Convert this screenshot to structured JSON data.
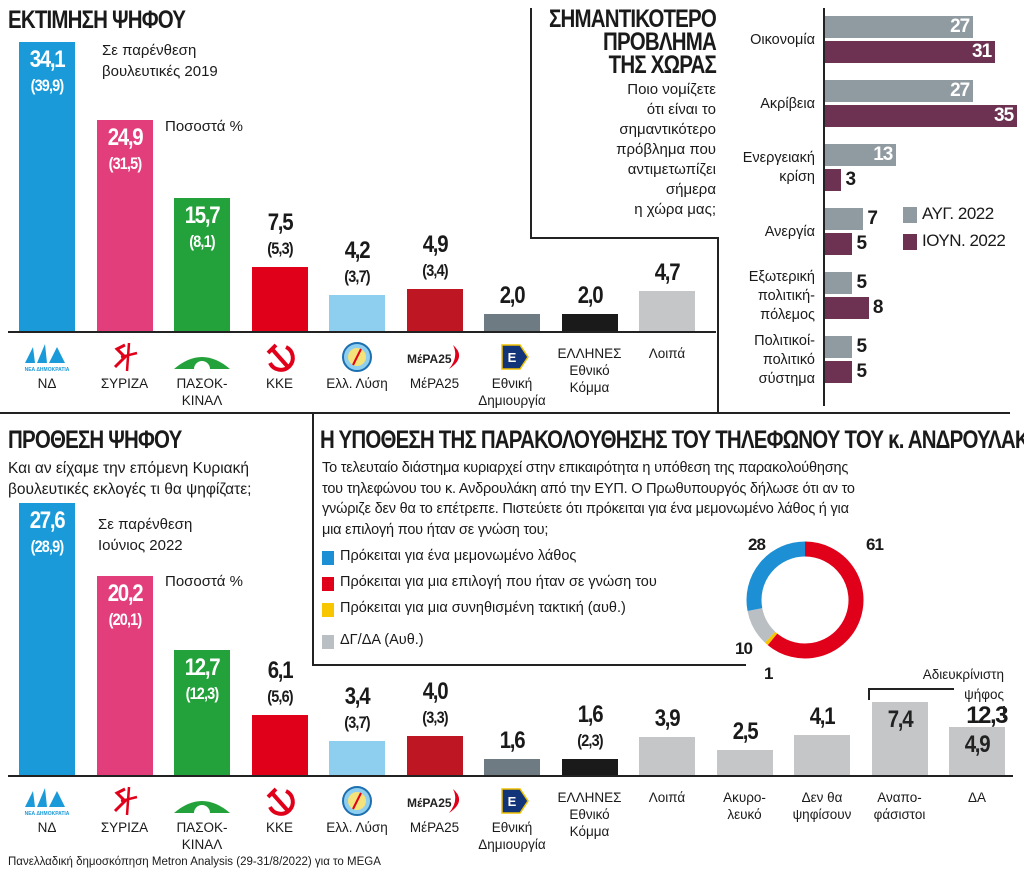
{
  "colors": {
    "nd": "#1a9ad9",
    "syriza": "#e23e7b",
    "pasok": "#23a13a",
    "kke": "#e1001a",
    "ellisi": "#8ecff0",
    "mera25": "#be1622",
    "ethniki": "#6f7b82",
    "ellines": "#1a1a1a",
    "other": "#c4c6c8",
    "aug": "#8f9aa1",
    "jun": "#6d3152",
    "donut_blue": "#1d8fd5",
    "donut_red": "#e1001a",
    "donut_yellow": "#f7c600",
    "donut_gray": "#b9bfc3"
  },
  "chart_data": [
    {
      "type": "bar",
      "title": "ΕΚΤΙΜΗΣΗ ΨΗΦΟΥ",
      "note": "Σε παρένθεση\nβουλευτικές 2019",
      "unit_note": "Ποσοστά %",
      "categories": [
        "ΝΔ",
        "ΣΥΡΙΖΑ",
        "ΠΑΣΟΚ-\nΚΙΝΑΛ",
        "ΚΚΕ",
        "Ελλ. Λύση",
        "ΜέΡΑ25",
        "Εθνική\nΔημιουργία",
        "ΕΛΛΗΝΕΣ\nΕθνικό\nΚόμμα",
        "Λοιπά"
      ],
      "logos": [
        "nd-logo",
        "syriza-logo",
        "pasok-logo",
        "kke-logo",
        "ellisi-logo",
        "mera25-logo",
        "ethniki-logo",
        "",
        ""
      ],
      "logo_text": {
        "nd": "ΝΕΑ ΔΗΜΟΚΡΑΤΙΑ",
        "mera25": "ΜέΡΑ25"
      },
      "bar_colors": [
        "#1a9ad9",
        "#e23e7b",
        "#23a13a",
        "#e1001a",
        "#8ecff0",
        "#be1622",
        "#6f7b82",
        "#1a1a1a",
        "#c4c6c8"
      ],
      "values": [
        34.1,
        24.9,
        15.7,
        7.5,
        4.2,
        4.9,
        2.0,
        2.0,
        4.7
      ],
      "value_labels": [
        "34,1",
        "24,9",
        "15,7",
        "7,5",
        "4,2",
        "4,9",
        "2,0",
        "2,0",
        "4,7"
      ],
      "previous_values": [
        39.9,
        31.5,
        8.1,
        5.3,
        3.7,
        3.4,
        null,
        null,
        null
      ],
      "previous_labels": [
        "(39,9)",
        "(31,5)",
        "(8,1)",
        "(5,3)",
        "(3,7)",
        "(3,4)",
        null,
        null,
        null
      ],
      "ylim": [
        0,
        40
      ]
    },
    {
      "type": "bar",
      "title": "ΠΡΟΘΕΣΗ ΨΗΦΟΥ",
      "subtitle": "Και αν είχαμε την επόμενη Κυριακή\nβουλευτικές εκλογές τι θα ψηφίζατε;",
      "note": "Σε παρένθεση\nΙούνιος 2022",
      "unit_note": "Ποσοστά %",
      "categories": [
        "ΝΔ",
        "ΣΥΡΙΖΑ",
        "ΠΑΣΟΚ-\nΚΙΝΑΛ",
        "ΚΚΕ",
        "Ελλ. Λύση",
        "ΜέΡΑ25",
        "Εθνική\nΔημιουργία",
        "ΕΛΛΗΝΕΣ\nΕθνικό\nΚόμμα",
        "Λοιπά",
        "Ακυρο-\nλευκό",
        "Δεν θα\nψηφίσουν",
        "Αναπο-\nφάσιστοι",
        "ΔΑ"
      ],
      "logos": [
        "nd-logo",
        "syriza-logo",
        "pasok-logo",
        "kke-logo",
        "ellisi-logo",
        "mera25-logo",
        "ethniki-logo",
        "",
        "",
        "",
        "",
        "",
        ""
      ],
      "bar_colors": [
        "#1a9ad9",
        "#e23e7b",
        "#23a13a",
        "#e1001a",
        "#8ecff0",
        "#be1622",
        "#6f7b82",
        "#1a1a1a",
        "#c4c6c8",
        "#c4c6c8",
        "#c4c6c8",
        "#c4c6c8",
        "#c4c6c8"
      ],
      "values": [
        27.6,
        20.2,
        12.7,
        6.1,
        3.4,
        4.0,
        1.6,
        1.6,
        3.9,
        2.5,
        4.1,
        7.4,
        4.9
      ],
      "value_labels": [
        "27,6",
        "20,2",
        "12,7",
        "6,1",
        "3,4",
        "4,0",
        "1,6",
        "1,6",
        "3,9",
        "2,5",
        "4,1",
        "7,4",
        "4,9"
      ],
      "previous_values": [
        28.9,
        20.1,
        12.3,
        5.6,
        3.7,
        3.3,
        null,
        2.3,
        null,
        null,
        null,
        null,
        null
      ],
      "previous_labels": [
        "(28,9)",
        "(20,1)",
        "(12,3)",
        "(5,6)",
        "(3,7)",
        "(3,3)",
        null,
        "(2,3)",
        null,
        null,
        null,
        null,
        null
      ],
      "annotation": {
        "label": "Αδιευκρίνιστη\nψήφος",
        "value": 12.3,
        "value_label": "12,3",
        "covers": [
          "Αναπο-\nφάσιστοι",
          "ΔΑ"
        ]
      },
      "ylim": [
        0,
        30
      ]
    },
    {
      "type": "bar",
      "orientation": "horizontal",
      "title": "ΣΗΜΑΝΤΙΚΟΤΕΡΟ\nΠΡΟΒΛΗΜΑ\nΤΗΣ ΧΩΡΑΣ",
      "question": "Ποιο νομίζετε\nότι είναι το\nσημαντικότερο\nπρόβλημα που\nαντιμετωπίζει\nσήμερα\nη χώρα μας;",
      "categories": [
        "Οικονομία",
        "Ακρίβεια",
        "Ενεργειακή\nκρίση",
        "Ανεργία",
        "Εξωτερική\nπολιτική-\nπόλεμος",
        "Πολιτικοί-\nπολιτικό\nσύστημα"
      ],
      "series": [
        {
          "name": "ΑΥΓ. 2022",
          "color": "#8f9aa1",
          "values": [
            27,
            27,
            13,
            7,
            5,
            5
          ]
        },
        {
          "name": "ΙΟΥΝ. 2022",
          "color": "#6d3152",
          "values": [
            31,
            35,
            3,
            5,
            8,
            5
          ]
        }
      ],
      "legend": "right",
      "xlim": [
        0,
        35
      ]
    },
    {
      "type": "pie",
      "style": "donut",
      "title": "Η ΥΠΟΘΕΣΗ ΤΗΣ ΠΑΡΑΚΟΛΟΥΘΗΣΗΣ ΤΟΥ ΤΗΛΕΦΩΝΟΥ ΤΟΥ κ. ΑΝΔΡΟΥΛΑΚΗ",
      "question": "Το τελευταίο διάστημα κυριαρχεί στην επικαιρότητα η υπόθεση της παρακολούθησης\nτου τηλεφώνου του κ. Ανδρουλάκη από την ΕΥΠ. Ο Πρωθυπουργός δήλωσε ότι αν το\nγνώριζε δεν θα το επέτρεπε. Πιστεύετε ότι πρόκειται για ένα μεμονωμένο λάθος ή για\nμια επιλογή που ήταν σε γνώση του;",
      "slices": [
        {
          "label": "Πρόκειται για μια επιλογή που ήταν σε γνώση του",
          "value": 61,
          "color": "#e1001a"
        },
        {
          "label": "Πρόκειται για μια συνηθισμένη τακτική (αυθ.)",
          "value": 1,
          "color": "#f7c600"
        },
        {
          "label": "ΔΓ/ΔΑ (Αυθ.)",
          "value": 10,
          "color": "#b9bfc3"
        },
        {
          "label": "Πρόκειται για ένα μεμονωμένο λάθος",
          "value": 28,
          "color": "#1d8fd5"
        }
      ],
      "legend_order": [
        "Πρόκειται για ένα μεμονωμένο λάθος",
        "Πρόκειται για μια επιλογή που ήταν σε γνώση του",
        "Πρόκειται για μια συνηθισμένη τακτική (αυθ.)",
        "ΔΓ/ΔΑ (Αυθ.)"
      ],
      "legend_colors": [
        "#1d8fd5",
        "#e1001a",
        "#f7c600",
        "#b9bfc3"
      ],
      "legend": "left"
    }
  ],
  "footer": {
    "source": "Πανελλαδική δημοσκόπηση Metron Analysis (29-31/8/2022) για το MEGA"
  }
}
